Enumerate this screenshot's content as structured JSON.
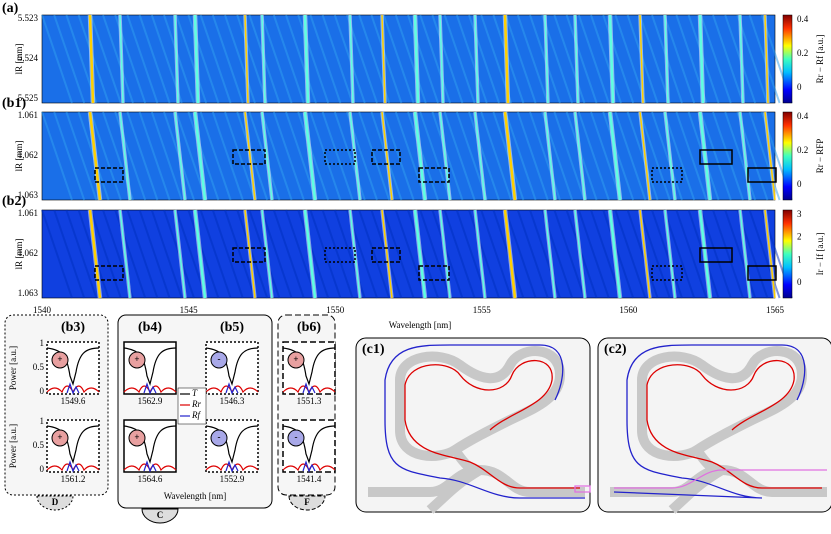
{
  "xaxis": {
    "ticks": [
      "1540",
      "1545",
      "1550",
      "1555",
      "1560",
      "1565"
    ],
    "label": "Wavelength [nm]"
  },
  "panels": [
    {
      "label": "(a)",
      "ylabel": "lR [mm]",
      "yticks": [
        "5.523",
        "5.524",
        "5.525"
      ],
      "cbar_ticks": [
        "0.4",
        "0.2",
        "0"
      ],
      "cbar_label": "Rr − Rf [a.u.]"
    },
    {
      "label": "(b1)",
      "ylabel": "lR [mm]",
      "yticks": [
        "1.061",
        "1.062",
        "1.063"
      ],
      "cbar_ticks": [
        "0.4",
        "0.2",
        "0"
      ],
      "cbar_label": "Rr − RFP"
    },
    {
      "label": "(b2)",
      "ylabel": "lR [mm]",
      "yticks": [
        "1.061",
        "1.062",
        "1.063"
      ],
      "cbar_ticks": [
        "3",
        "2",
        "1",
        "0"
      ],
      "cbar_label": "Ir − If [a.u.]"
    }
  ],
  "insets": [
    {
      "label": "(b3)",
      "plots": [
        {
          "wavelength": "1549.6",
          "sign": "+"
        },
        {
          "wavelength": "1561.2",
          "sign": "+"
        }
      ]
    },
    {
      "label": "(b4)",
      "plots": [
        {
          "wavelength": "1562.9",
          "sign": "+"
        },
        {
          "wavelength": "1564.6",
          "sign": "+"
        }
      ]
    },
    {
      "label": "(b5)",
      "plots": [
        {
          "wavelength": "1546.3",
          "sign": "-"
        },
        {
          "wavelength": "1552.9",
          "sign": "-"
        }
      ]
    },
    {
      "label": "(b6)",
      "plots": [
        {
          "wavelength": "1551.3",
          "sign": "+"
        },
        {
          "wavelength": "1541.4",
          "sign": "-"
        }
      ]
    }
  ],
  "inset_yticks": [
    "1",
    "0.5",
    "0"
  ],
  "inset_ylabel": "Power [a.u.]",
  "legend": [
    "T",
    "Rr",
    "Rf"
  ],
  "inset_xlabel": "Wavelength [nm]",
  "groups": [
    "D",
    "C",
    "F"
  ],
  "circuits": [
    "(c1)",
    "(c2)"
  ]
}
